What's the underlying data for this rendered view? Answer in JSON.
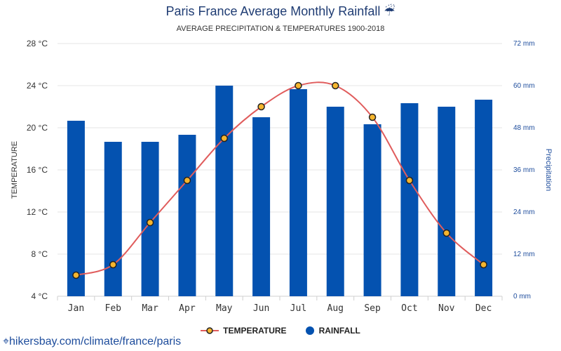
{
  "chart_data": {
    "type": "bar+line",
    "title": "Paris France Average Monthly Rainfall ☔",
    "subtitle": "AVERAGE PRECIPITATION & TEMPERATURES 1900-2018",
    "categories": [
      "Jan",
      "Feb",
      "Mar",
      "Apr",
      "May",
      "Jun",
      "Jul",
      "Aug",
      "Sep",
      "Oct",
      "Nov",
      "Dec"
    ],
    "series": [
      {
        "name": "TEMPERATURE",
        "type": "line",
        "axis": "left",
        "color": "#e05c5c",
        "values": [
          6,
          7,
          11,
          15,
          19,
          22,
          24,
          24,
          21,
          15,
          10,
          7
        ]
      },
      {
        "name": "RAINFALL",
        "type": "bar",
        "axis": "right",
        "color": "#0452b0",
        "values": [
          50,
          44,
          44,
          46,
          60,
          51,
          59,
          54,
          49,
          55,
          54,
          56
        ]
      }
    ],
    "y_left": {
      "label": "TEMPERATURE",
      "range": [
        4,
        28
      ],
      "ticks": [
        "4 °C",
        "8 °C",
        "12 °C",
        "16 °C",
        "20 °C",
        "24 °C",
        "28 °C"
      ]
    },
    "y_right": {
      "label": "Precipitation",
      "range": [
        0,
        72
      ],
      "ticks": [
        "0 mm",
        "12 mm",
        "24 mm",
        "36 mm",
        "48 mm",
        "60 mm",
        "72 mm"
      ]
    },
    "grid": true,
    "legend": "bottom-center",
    "point_fill": "#f5b52e"
  },
  "source": "hikersbay.com/climate/france/paris"
}
